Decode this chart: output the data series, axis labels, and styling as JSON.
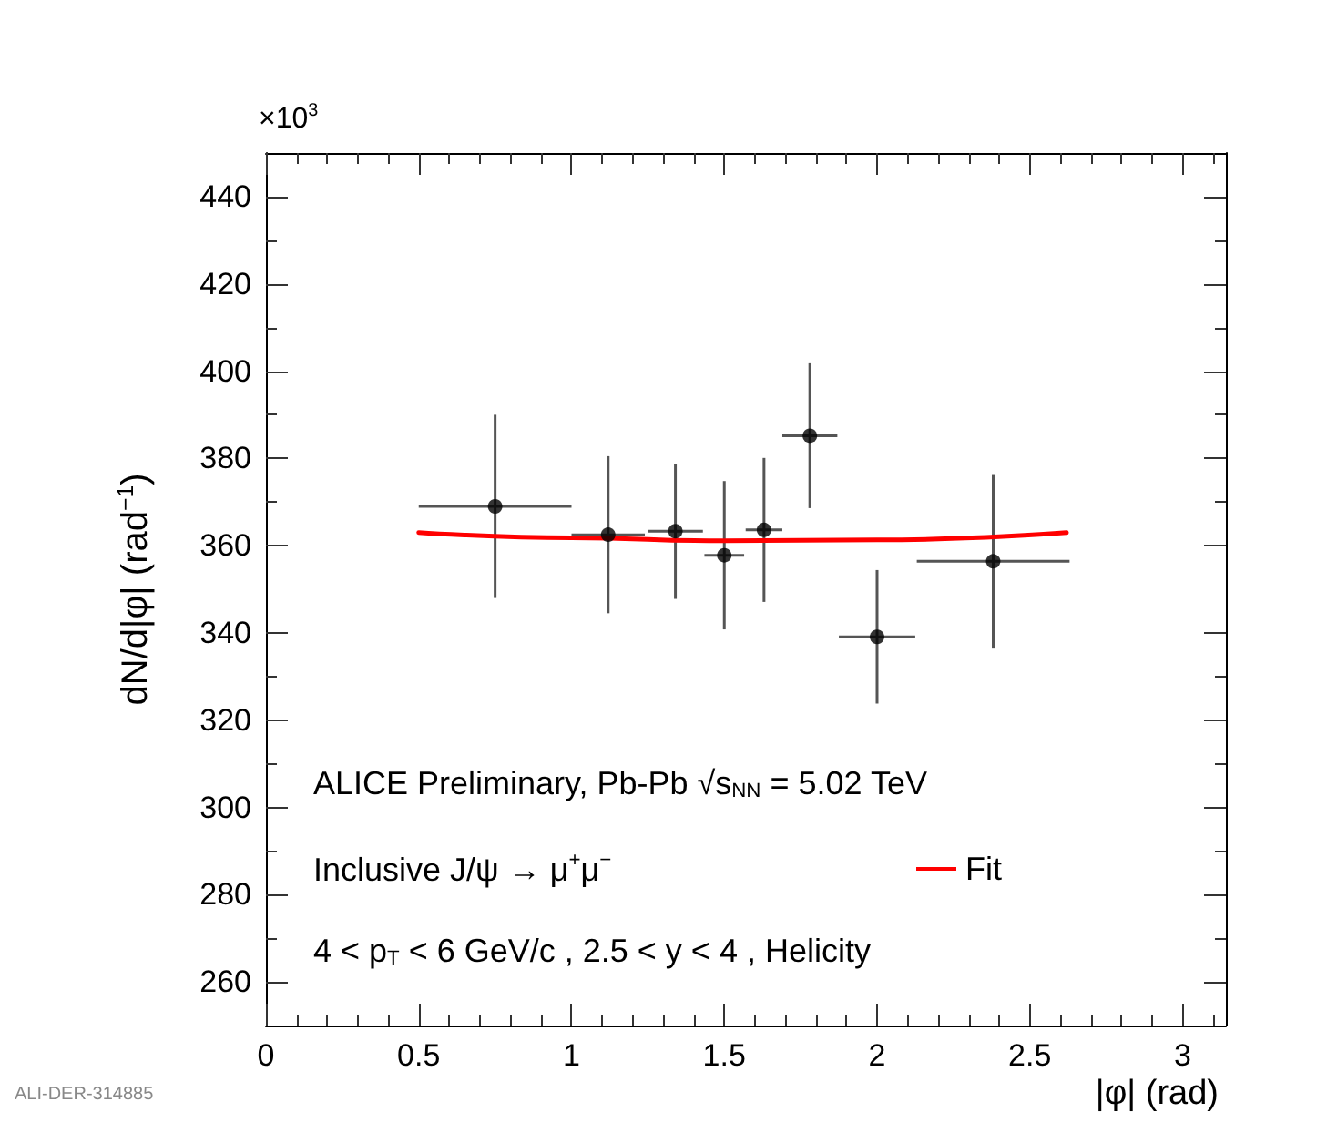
{
  "chart_data": {
    "type": "scatter",
    "xlabel": "|φ| (rad)",
    "ylabel": "dN/d|φ| (rad$^{−1}$)",
    "xlim": [
      0,
      3.1416
    ],
    "xticks": [
      0,
      0.5,
      1,
      1.5,
      2,
      2.5,
      3
    ],
    "ylim": [
      250,
      450
    ],
    "yticks": [
      260,
      280,
      300,
      320,
      340,
      360,
      380,
      400,
      420,
      440
    ],
    "grid": false,
    "legend": "bottom right",
    "series": [
      {
        "type": "scatter",
        "color": "#000000",
        "marker": "circle",
        "x": [
          0.75,
          1.12,
          1.34,
          1.5,
          1.63,
          1.78,
          2.0,
          2.38
        ],
        "values": [
          369,
          362.5,
          363.3,
          357.8,
          363.6,
          385.2,
          339.1,
          356.4
        ],
        "errors": [
          21,
          18,
          15.5,
          17,
          16.5,
          16.6,
          15.3,
          20
        ],
        "xerrors": [
          0.25,
          0.12,
          0.09,
          0.065,
          0.06,
          0.09,
          0.125,
          0.25
        ]
      },
      {
        "type": "line",
        "name": "Fit",
        "color": "#ff0000",
        "marker": "none",
        "line_style": "solid",
        "x": [
          0.5,
          1.0,
          1.5,
          2.0,
          2.62
        ],
        "values": [
          363,
          361.8,
          361.1,
          361.3,
          363
        ]
      }
    ],
    "annotations": [
      "×10$^{3}$",
      "ALICE Preliminary, Pb-Pb √s$_{NN}$ = 5.02 TeV",
      "Inclusive J/ψ → μ$^{+}$μ$^{−}$",
      "4 < p$_{T}$ < 6 GeV/c , 2.5 < y < 4 , Helicity",
      "ALI-DER-314885"
    ]
  }
}
